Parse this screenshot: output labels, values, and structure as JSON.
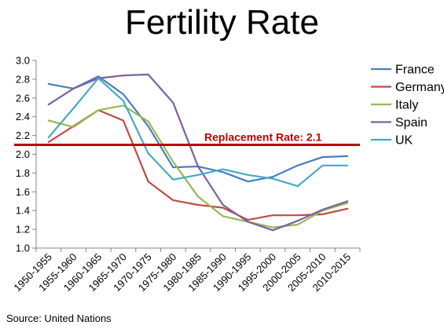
{
  "chart_data": {
    "type": "line",
    "title": "Fertility Rate",
    "categories": [
      "1950-1955",
      "1955-1960",
      "1960-1965",
      "1965-1970",
      "1970-1975",
      "1975-1980",
      "1980-1985",
      "1985-1990",
      "1990-1995",
      "1995-2000",
      "2000-2005",
      "2005-2010",
      "2010-2015"
    ],
    "ylim": [
      1.0,
      3.0
    ],
    "yticks": [
      "1.0",
      "1.2",
      "1.4",
      "1.6",
      "1.8",
      "2.0",
      "2.2",
      "2.4",
      "2.6",
      "2.8",
      "3.0"
    ],
    "grid": false,
    "legend_position": "right",
    "series": [
      {
        "name": "France",
        "color": "#4a7ebb",
        "values": [
          2.75,
          2.7,
          2.83,
          2.64,
          2.3,
          1.86,
          1.87,
          1.81,
          1.71,
          1.76,
          1.88,
          1.97,
          1.98
        ]
      },
      {
        "name": "Germany",
        "color": "#be4b48",
        "values": [
          2.13,
          2.3,
          2.47,
          2.36,
          1.71,
          1.51,
          1.46,
          1.43,
          1.3,
          1.35,
          1.35,
          1.36,
          1.42
        ]
      },
      {
        "name": "Italy",
        "color": "#98b954",
        "values": [
          2.36,
          2.29,
          2.47,
          2.52,
          2.35,
          1.92,
          1.55,
          1.34,
          1.28,
          1.22,
          1.25,
          1.4,
          1.48
        ]
      },
      {
        "name": "Spain",
        "color": "#7d60a0",
        "values": [
          2.53,
          2.7,
          2.81,
          2.84,
          2.85,
          2.55,
          1.87,
          1.46,
          1.28,
          1.19,
          1.29,
          1.41,
          1.5
        ]
      },
      {
        "name": "UK",
        "color": "#46aac5",
        "values": [
          2.18,
          2.49,
          2.81,
          2.57,
          2.01,
          1.73,
          1.78,
          1.84,
          1.78,
          1.74,
          1.66,
          1.88,
          1.88
        ]
      }
    ],
    "annotations": [
      {
        "text": "Replacement Rate: 2.1",
        "y": 2.1,
        "color": "#c00000"
      }
    ],
    "source": "Source: United Nations"
  }
}
